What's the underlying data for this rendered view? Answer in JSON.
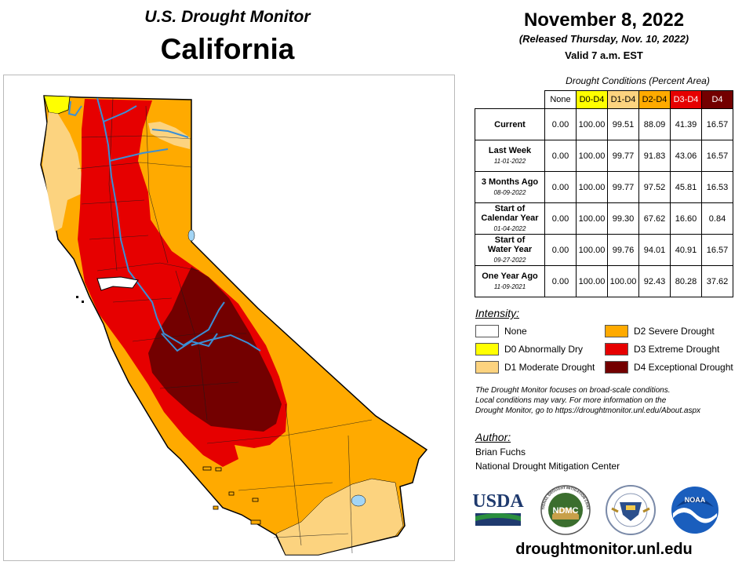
{
  "header": {
    "supertitle": "U.S. Drought Monitor",
    "state": "California",
    "date": "November 8, 2022",
    "released": "(Released Thursday, Nov. 10, 2022)",
    "valid": "Valid 7 a.m. EST"
  },
  "table": {
    "title": "Drought Conditions (Percent Area)",
    "columns": [
      {
        "label": "None",
        "color": "#ffffff",
        "text_color": "#000000"
      },
      {
        "label": "D0-D4",
        "color": "#ffff00",
        "text_color": "#000000"
      },
      {
        "label": "D1-D4",
        "color": "#fcd37f",
        "text_color": "#000000"
      },
      {
        "label": "D2-D4",
        "color": "#ffaa00",
        "text_color": "#000000"
      },
      {
        "label": "D3-D4",
        "color": "#e60000",
        "text_color": "#ffffff"
      },
      {
        "label": "D4",
        "color": "#730000",
        "text_color": "#ffffff"
      }
    ],
    "rows": [
      {
        "label": "Current",
        "label2": "",
        "date": "",
        "values": [
          "0.00",
          "100.00",
          "99.51",
          "88.09",
          "41.39",
          "16.57"
        ]
      },
      {
        "label": "Last Week",
        "label2": "",
        "date": "11-01-2022",
        "values": [
          "0.00",
          "100.00",
          "99.77",
          "91.83",
          "43.06",
          "16.57"
        ]
      },
      {
        "label": "3 Months Ago",
        "label2": "",
        "date": "08-09-2022",
        "values": [
          "0.00",
          "100.00",
          "99.77",
          "97.52",
          "45.81",
          "16.53"
        ]
      },
      {
        "label": "Start of",
        "label2": "Calendar Year",
        "date": "01-04-2022",
        "values": [
          "0.00",
          "100.00",
          "99.30",
          "67.62",
          "16.60",
          "0.84"
        ]
      },
      {
        "label": "Start of",
        "label2": "Water Year",
        "date": "09-27-2022",
        "values": [
          "0.00",
          "100.00",
          "99.76",
          "94.01",
          "40.91",
          "16.57"
        ]
      },
      {
        "label": "One Year Ago",
        "label2": "",
        "date": "11-09-2021",
        "values": [
          "0.00",
          "100.00",
          "100.00",
          "92.43",
          "80.28",
          "37.62"
        ]
      }
    ]
  },
  "legend": {
    "title": "Intensity:",
    "items": [
      {
        "label": "None",
        "color": "#ffffff"
      },
      {
        "label": "D0 Abnormally Dry",
        "color": "#ffff00"
      },
      {
        "label": "D1 Moderate Drought",
        "color": "#fcd37f"
      },
      {
        "label": "D2 Severe Drought",
        "color": "#ffaa00"
      },
      {
        "label": "D3 Extreme Drought",
        "color": "#e60000"
      },
      {
        "label": "D4 Exceptional Drought",
        "color": "#730000"
      }
    ]
  },
  "note": {
    "line1": "The Drought Monitor focuses on broad-scale conditions.",
    "line2": "Local conditions may vary. For more information on the",
    "line3": "Drought Monitor, go to https://droughtmonitor.unl.edu/About.aspx"
  },
  "author": {
    "title": "Author:",
    "name": "Brian Fuchs",
    "org": "National Drought Mitigation Center"
  },
  "logos": {
    "usda": "USDA",
    "ndmc": "NDMC",
    "noaa": "NOAA",
    "ndmc_ring": "NATIONAL DROUGHT MITIGATION CENTER"
  },
  "website": "droughtmonitor.unl.edu"
}
